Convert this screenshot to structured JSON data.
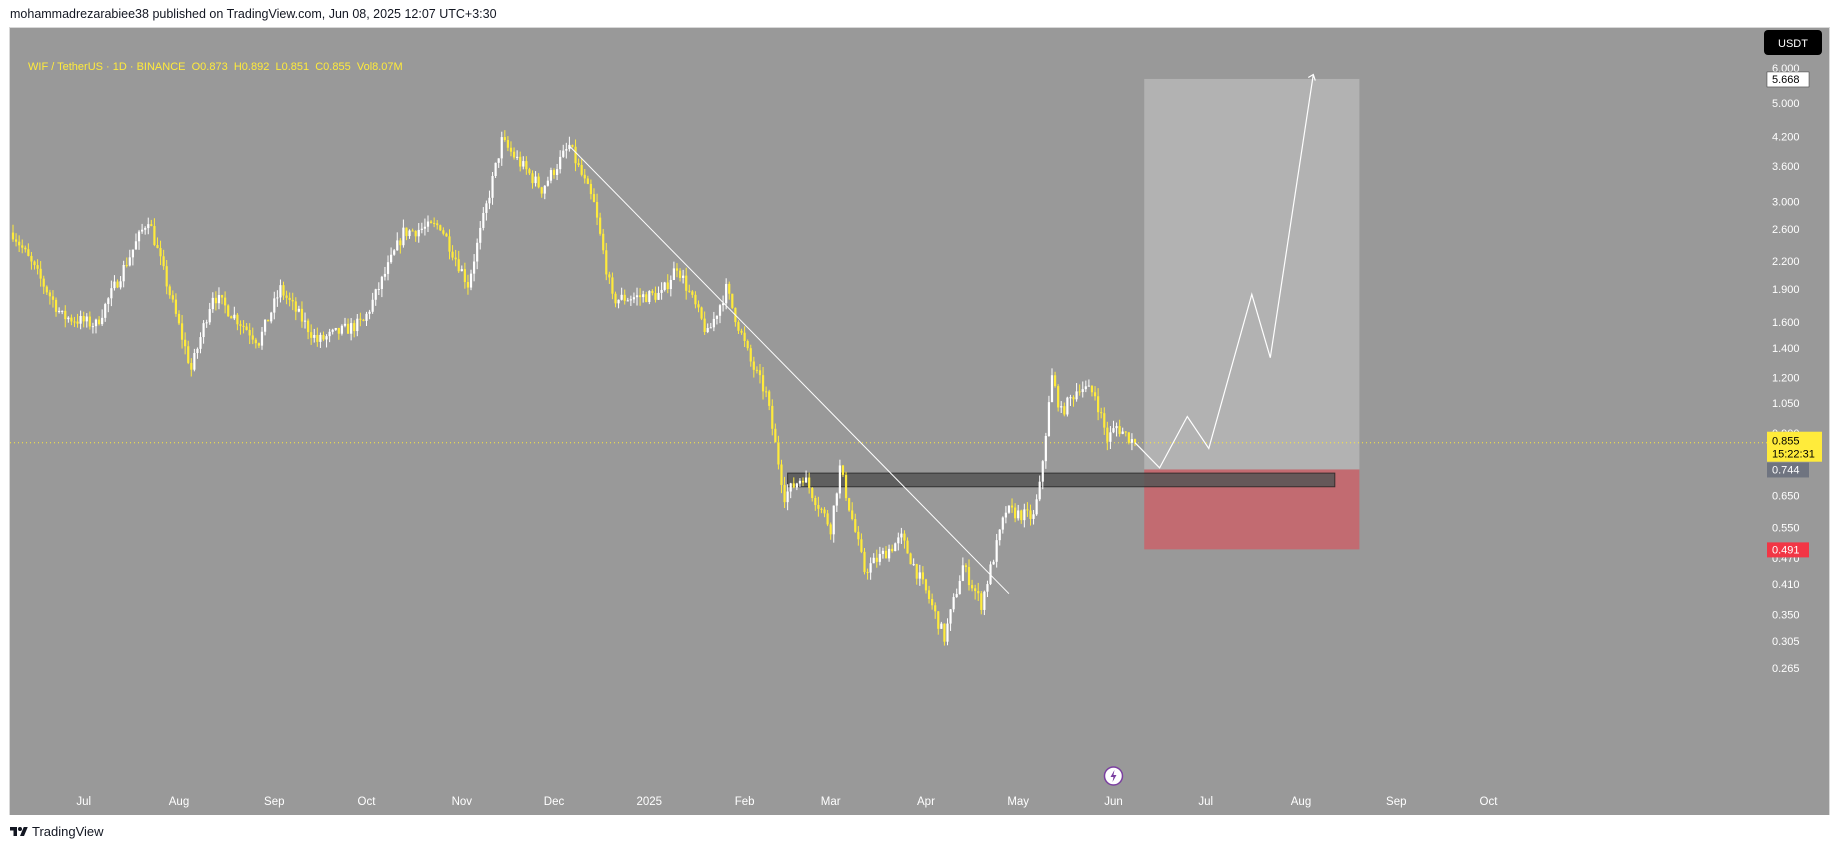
{
  "header": {
    "publish_text": "mohammadrezarabiee38 published on TradingView.com, Jun 08, 2025 12:07 UTC+3:30"
  },
  "footer": {
    "brand": "TradingView"
  },
  "colors": {
    "background": "#999999",
    "candle_up": "#ffffff",
    "candle_down": "#ffeb3b",
    "target_zone": "#b3b3b3",
    "stop_zone": "#c4686f",
    "zone_box": "#555555",
    "price_tag": "#ffeb3b",
    "stop_tag": "#f23645"
  },
  "chart_data": {
    "type": "candlestick",
    "symbol_line": {
      "symbol": "WIF / TetherUS · 1D · BINANCE",
      "open": "O0.873",
      "high": "H0.892",
      "low": "L0.851",
      "close": "C0.855",
      "volume": "Vol8.07M"
    },
    "currency_button": "USDT",
    "scale": "log",
    "y_ticks": [
      "6.000",
      "5.000",
      "4.200",
      "3.600",
      "3.000",
      "2.600",
      "2.200",
      "1.900",
      "1.600",
      "1.400",
      "1.200",
      "1.050",
      "0.900",
      "0.750",
      "0.650",
      "0.550",
      "0.470",
      "0.410",
      "0.350",
      "0.305",
      "0.265"
    ],
    "x_ticks": [
      "Jul",
      "Aug",
      "Sep",
      "Oct",
      "Nov",
      "Dec",
      "2025",
      "Feb",
      "Mar",
      "Apr",
      "May",
      "Jun",
      "Jul",
      "Aug",
      "Sep",
      "Oct"
    ],
    "price_key_points": [
      {
        "date": "2024-06-08",
        "price": 2.55
      },
      {
        "date": "2024-06-24",
        "price": 1.65
      },
      {
        "date": "2024-07-05",
        "price": 1.58
      },
      {
        "date": "2024-07-22",
        "price": 2.75
      },
      {
        "date": "2024-08-05",
        "price": 1.25
      },
      {
        "date": "2024-08-12",
        "price": 1.85
      },
      {
        "date": "2024-08-27",
        "price": 1.45
      },
      {
        "date": "2024-09-03",
        "price": 1.9
      },
      {
        "date": "2024-09-15",
        "price": 1.45
      },
      {
        "date": "2024-09-30",
        "price": 1.6
      },
      {
        "date": "2024-10-13",
        "price": 2.55
      },
      {
        "date": "2024-10-25",
        "price": 2.65
      },
      {
        "date": "2024-11-03",
        "price": 1.95
      },
      {
        "date": "2024-11-14",
        "price": 4.1
      },
      {
        "date": "2024-11-27",
        "price": 3.2
      },
      {
        "date": "2024-12-06",
        "price": 4.0
      },
      {
        "date": "2024-12-14",
        "price": 2.95
      },
      {
        "date": "2024-12-20",
        "price": 1.8
      },
      {
        "date": "2025-01-05",
        "price": 1.85
      },
      {
        "date": "2025-01-10",
        "price": 2.15
      },
      {
        "date": "2025-01-20",
        "price": 1.5
      },
      {
        "date": "2025-01-26",
        "price": 1.9
      },
      {
        "date": "2025-02-03",
        "price": 1.3
      },
      {
        "date": "2025-02-08",
        "price": 1.1
      },
      {
        "date": "2025-02-14",
        "price": 0.65
      },
      {
        "date": "2025-02-20",
        "price": 0.72
      },
      {
        "date": "2025-03-01",
        "price": 0.55
      },
      {
        "date": "2025-03-04",
        "price": 0.75
      },
      {
        "date": "2025-03-12",
        "price": 0.44
      },
      {
        "date": "2025-03-24",
        "price": 0.52
      },
      {
        "date": "2025-04-02",
        "price": 0.38
      },
      {
        "date": "2025-04-07",
        "price": 0.31
      },
      {
        "date": "2025-04-13",
        "price": 0.45
      },
      {
        "date": "2025-04-19",
        "price": 0.37
      },
      {
        "date": "2025-04-27",
        "price": 0.6
      },
      {
        "date": "2025-05-06",
        "price": 0.58
      },
      {
        "date": "2025-05-08",
        "price": 0.68
      },
      {
        "date": "2025-05-12",
        "price": 1.2
      },
      {
        "date": "2025-05-15",
        "price": 1.0
      },
      {
        "date": "2025-05-21",
        "price": 1.15
      },
      {
        "date": "2025-05-26",
        "price": 1.1
      },
      {
        "date": "2025-05-30",
        "price": 0.87
      },
      {
        "date": "2025-06-02",
        "price": 0.93
      },
      {
        "date": "2025-06-08",
        "price": 0.855
      }
    ],
    "trendline": {
      "start": {
        "date": "2024-12-06",
        "price": 4.0
      },
      "end": {
        "date": "2025-04-28",
        "price": 0.39
      }
    },
    "zone_box": {
      "start": "2025-02-15",
      "end": "2025-08-12",
      "top": 0.73,
      "bottom": 0.68
    },
    "position": {
      "start": "2025-06-11",
      "end": "2025-08-20",
      "entry": 0.744,
      "target": 5.668,
      "stop": 0.491
    },
    "projection_path": [
      {
        "date": "2025-06-08",
        "price": 0.855
      },
      {
        "date": "2025-06-16",
        "price": 0.75
      },
      {
        "date": "2025-06-25",
        "price": 0.98
      },
      {
        "date": "2025-07-02",
        "price": 0.83
      },
      {
        "date": "2025-07-16",
        "price": 1.85
      },
      {
        "date": "2025-07-22",
        "price": 1.33
      },
      {
        "date": "2025-08-05",
        "price": 5.8
      }
    ],
    "last_price": {
      "value": "0.855",
      "countdown": "15:22:31",
      "price": 0.855
    },
    "price_labels": [
      {
        "value": "5.668",
        "price": 5.668
      },
      {
        "value": "0.744",
        "price": 0.744
      },
      {
        "value": "0.491",
        "price": 0.491
      }
    ]
  }
}
